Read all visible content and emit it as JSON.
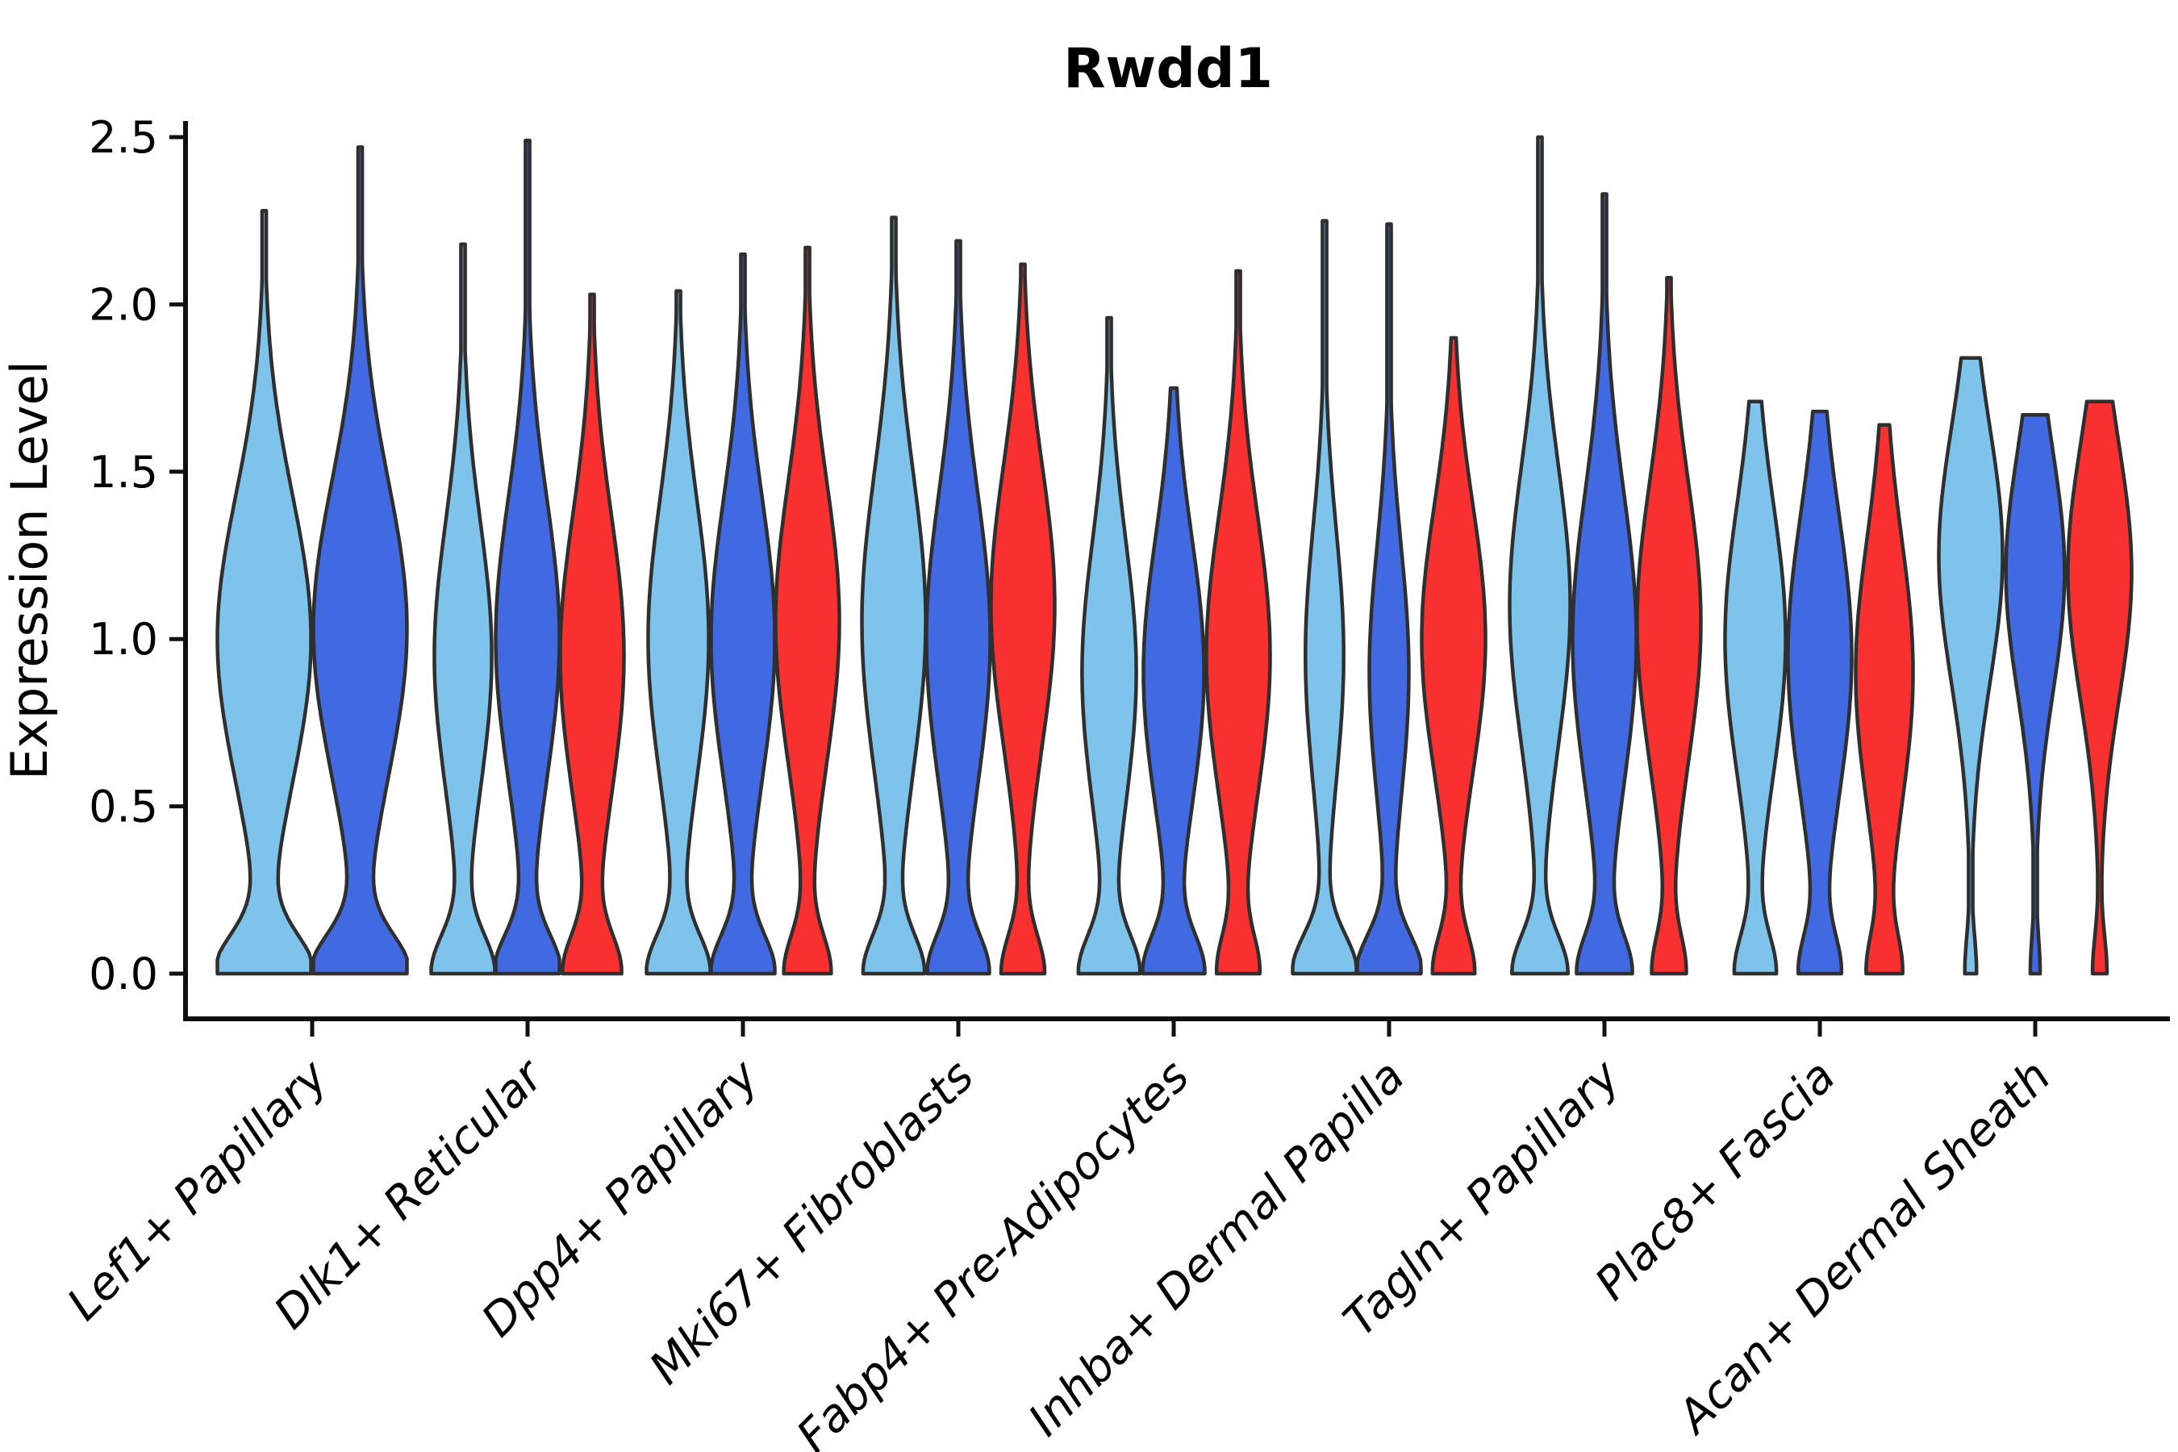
{
  "title": "Rwdd1",
  "y_axis": {
    "label": "Expression Level",
    "tick_labels": [
      "0.0",
      "0.5",
      "1.0",
      "1.5",
      "2.0",
      "2.5"
    ],
    "tick_values": [
      0.0,
      0.5,
      1.0,
      1.5,
      2.0,
      2.5
    ]
  },
  "chart_data": {
    "type": "violin",
    "title": "Rwdd1",
    "xlabel": "",
    "ylabel": "Expression Level",
    "ylim": [
      -0.135,
      2.55
    ],
    "grid": false,
    "legend": "none",
    "palette": {
      "light_blue": "#7EC3EB",
      "blue": "#4169E1",
      "red": "#F93030",
      "outline": "#2F2F2F",
      "axis": "#111111"
    },
    "categories": [
      "Lef1+ Papillary",
      "Dlk1+ Reticular",
      "Dpp4+ Papillary",
      "Mki67+ Fibroblasts",
      "Fabp4+ Pre-Adipocytes",
      "Inhba+ Dermal Papilla",
      "Tagln+ Papillary",
      "Plac8+ Fascia",
      "Acan+ Dermal Sheath"
    ],
    "violin_note": "Each series entry: color key, max expression (violin tip), density peak position, density spread, relative body width (0-1 of lane), relative foot width at zero (0-1 of lane). All violins start at 0.0 with a flat base.",
    "violins": [
      {
        "category": "Lef1+ Papillary",
        "series": [
          {
            "color": "light_blue",
            "max": 2.28,
            "peak": 1.0,
            "spread": 0.43,
            "body_w": 1.0,
            "foot_w": 1.0
          },
          {
            "color": "blue",
            "max": 2.47,
            "peak": 1.03,
            "spread": 0.44,
            "body_w": 1.0,
            "foot_w": 1.0
          }
        ]
      },
      {
        "category": "Dlk1+ Reticular",
        "series": [
          {
            "color": "light_blue",
            "max": 2.18,
            "peak": 0.95,
            "spread": 0.4,
            "body_w": 0.9,
            "foot_w": 0.95
          },
          {
            "color": "blue",
            "max": 2.49,
            "peak": 1.0,
            "spread": 0.42,
            "body_w": 1.0,
            "foot_w": 1.0
          },
          {
            "color": "red",
            "max": 2.03,
            "peak": 0.95,
            "spread": 0.42,
            "body_w": 1.0,
            "foot_w": 0.85
          }
        ]
      },
      {
        "category": "Dpp4+ Papillary",
        "series": [
          {
            "color": "light_blue",
            "max": 2.04,
            "peak": 1.0,
            "spread": 0.42,
            "body_w": 0.95,
            "foot_w": 0.95
          },
          {
            "color": "blue",
            "max": 2.15,
            "peak": 1.0,
            "spread": 0.42,
            "body_w": 1.0,
            "foot_w": 0.95
          },
          {
            "color": "red",
            "max": 2.17,
            "peak": 1.05,
            "spread": 0.42,
            "body_w": 1.0,
            "foot_w": 0.7
          }
        ]
      },
      {
        "category": "Mki67+ Fibroblasts",
        "series": [
          {
            "color": "light_blue",
            "max": 2.26,
            "peak": 1.05,
            "spread": 0.45,
            "body_w": 1.0,
            "foot_w": 0.9
          },
          {
            "color": "blue",
            "max": 2.19,
            "peak": 1.0,
            "spread": 0.44,
            "body_w": 1.0,
            "foot_w": 0.9
          },
          {
            "color": "red",
            "max": 2.12,
            "peak": 1.1,
            "spread": 0.42,
            "body_w": 1.0,
            "foot_w": 0.65
          }
        ]
      },
      {
        "category": "Fabp4+ Pre-Adipocytes",
        "series": [
          {
            "color": "light_blue",
            "max": 1.96,
            "peak": 0.9,
            "spread": 0.4,
            "body_w": 0.85,
            "foot_w": 0.9
          },
          {
            "color": "blue",
            "max": 1.75,
            "peak": 0.9,
            "spread": 0.4,
            "body_w": 0.95,
            "foot_w": 0.9
          },
          {
            "color": "red",
            "max": 2.1,
            "peak": 0.95,
            "spread": 0.42,
            "body_w": 1.0,
            "foot_w": 0.6
          }
        ]
      },
      {
        "category": "Inhba+ Dermal Papilla",
        "series": [
          {
            "color": "light_blue",
            "max": 2.25,
            "peak": 0.95,
            "spread": 0.38,
            "body_w": 0.6,
            "foot_w": 1.0
          },
          {
            "color": "blue",
            "max": 2.24,
            "peak": 0.9,
            "spread": 0.38,
            "body_w": 0.62,
            "foot_w": 1.0
          },
          {
            "color": "red",
            "max": 1.9,
            "peak": 1.0,
            "spread": 0.4,
            "body_w": 1.0,
            "foot_w": 0.62
          }
        ]
      },
      {
        "category": "Tagln+ Papillary",
        "series": [
          {
            "color": "light_blue",
            "max": 2.5,
            "peak": 1.1,
            "spread": 0.42,
            "body_w": 0.95,
            "foot_w": 0.85
          },
          {
            "color": "blue",
            "max": 2.33,
            "peak": 1.0,
            "spread": 0.44,
            "body_w": 1.0,
            "foot_w": 0.8
          },
          {
            "color": "red",
            "max": 2.08,
            "peak": 1.05,
            "spread": 0.42,
            "body_w": 1.0,
            "foot_w": 0.5
          }
        ]
      },
      {
        "category": "Plac8+ Fascia",
        "series": [
          {
            "color": "light_blue",
            "max": 1.71,
            "peak": 1.0,
            "spread": 0.4,
            "body_w": 0.95,
            "foot_w": 0.62
          },
          {
            "color": "blue",
            "max": 1.68,
            "peak": 0.95,
            "spread": 0.42,
            "body_w": 1.0,
            "foot_w": 0.6
          },
          {
            "color": "red",
            "max": 1.64,
            "peak": 0.9,
            "spread": 0.4,
            "body_w": 0.9,
            "foot_w": 0.5
          }
        ]
      },
      {
        "category": "Acan+ Dermal Sheath",
        "series": [
          {
            "color": "light_blue",
            "max": 1.84,
            "peak": 1.25,
            "spread": 0.38,
            "body_w": 1.0,
            "foot_w": 0.18
          },
          {
            "color": "blue",
            "max": 1.67,
            "peak": 1.2,
            "spread": 0.36,
            "body_w": 0.92,
            "foot_w": 0.15
          },
          {
            "color": "red",
            "max": 1.71,
            "peak": 1.2,
            "spread": 0.38,
            "body_w": 1.0,
            "foot_w": 0.22
          }
        ]
      }
    ]
  }
}
